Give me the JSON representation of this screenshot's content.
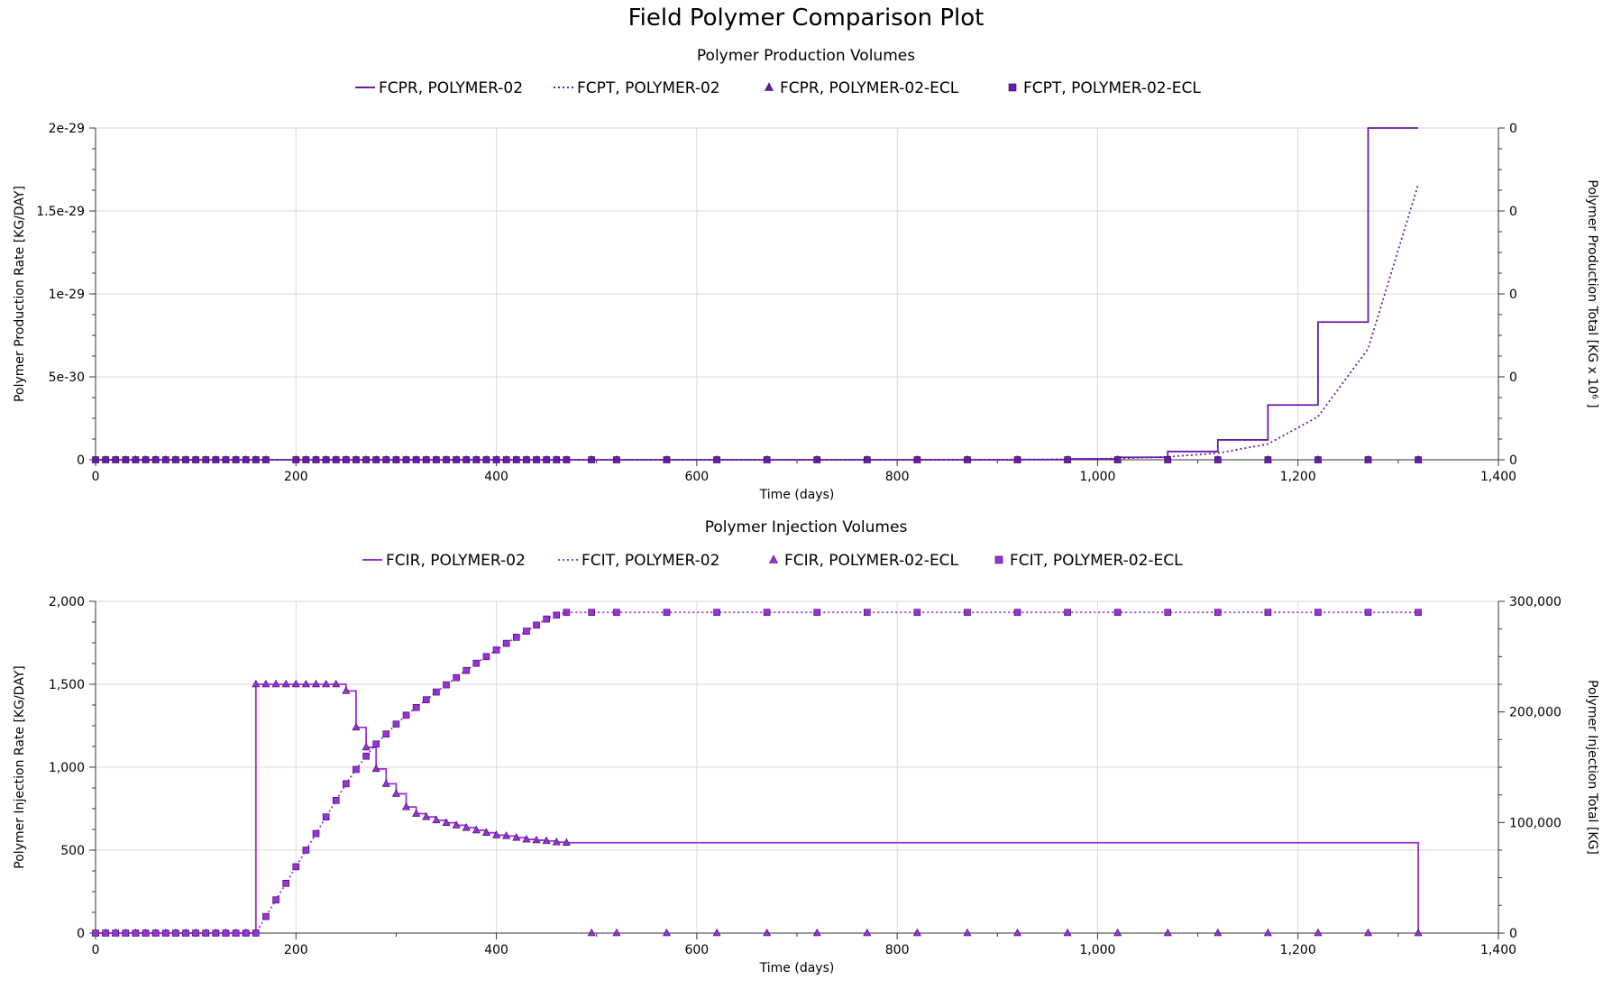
{
  "page": {
    "title": "Field Polymer Comparison Plot"
  },
  "colors": {
    "production": "#6a1aa8",
    "injection": "#9b30d9",
    "grid": "#d9d9d9",
    "axis": "#333333"
  },
  "chart_data": [
    {
      "type": "line",
      "title": "Polymer Production Volumes",
      "xlabel": "Time (days)",
      "ylabel": "Polymer Production Rate [KG/DAY]",
      "y2label": "Polymer Production Total [KG x 10⁶ ]",
      "xlim": [
        0,
        1400
      ],
      "ylim": [
        0,
        2e-29
      ],
      "y2lim": [
        0,
        1
      ],
      "x_ticks": [
        "0",
        "200",
        "400",
        "600",
        "800",
        "1,000",
        "1,200",
        "1,400"
      ],
      "y_ticks": [
        "0",
        "5e-30",
        "1e-29",
        "1.5e-29",
        "2e-29"
      ],
      "y2_ticks": [
        "0",
        "0",
        "0",
        "0",
        "0"
      ],
      "legend_position": "top",
      "grid": true,
      "series": [
        {
          "name": "FCPR, POLYMER-02",
          "style": "step-solid",
          "axis": "left",
          "x": [
            0,
            920,
            970,
            1020,
            1070,
            1120,
            1170,
            1220,
            1270,
            1320
          ],
          "y": [
            0,
            1e-32,
            5e-32,
            1.5e-31,
            5e-31,
            1.2e-30,
            3.3e-30,
            8.3e-30,
            2e-29,
            2e-29
          ]
        },
        {
          "name": "FCPT, POLYMER-02",
          "style": "dotted",
          "axis": "left",
          "x": [
            0,
            920,
            970,
            1020,
            1070,
            1120,
            1170,
            1220,
            1270,
            1320
          ],
          "y": [
            0,
            1e-32,
            3e-32,
            8e-32,
            1.8e-31,
            4e-31,
            9.5e-31,
            2.6e-30,
            6.7e-30,
            1.66e-29
          ]
        },
        {
          "name": "FCPR, POLYMER-02-ECL",
          "style": "triangle",
          "axis": "left",
          "x": [
            0,
            10,
            20,
            30,
            40,
            50,
            60,
            70,
            80,
            90,
            100,
            110,
            120,
            130,
            140,
            150,
            160,
            170,
            200,
            210,
            220,
            230,
            240,
            250,
            260,
            270,
            280,
            290,
            300,
            310,
            320,
            330,
            340,
            350,
            360,
            370,
            380,
            390,
            400,
            410,
            420,
            430,
            440,
            450,
            460,
            470,
            495,
            520,
            570,
            620,
            670,
            720,
            770,
            820,
            870,
            920,
            970,
            1020,
            1070,
            1120,
            1170,
            1220,
            1270,
            1320
          ],
          "y": [
            0,
            0,
            0,
            0,
            0,
            0,
            0,
            0,
            0,
            0,
            0,
            0,
            0,
            0,
            0,
            0,
            0,
            0,
            0,
            0,
            0,
            0,
            0,
            0,
            0,
            0,
            0,
            0,
            0,
            0,
            0,
            0,
            0,
            0,
            0,
            0,
            0,
            0,
            0,
            0,
            0,
            0,
            0,
            0,
            0,
            0,
            0,
            0,
            0,
            0,
            0,
            0,
            0,
            0,
            0,
            0,
            0,
            0,
            0,
            0,
            0,
            0,
            0,
            0
          ]
        },
        {
          "name": "FCPT, POLYMER-02-ECL",
          "style": "square",
          "axis": "left",
          "x": [
            0,
            10,
            20,
            30,
            40,
            50,
            60,
            70,
            80,
            90,
            100,
            110,
            120,
            130,
            140,
            150,
            160,
            170,
            200,
            210,
            220,
            230,
            240,
            250,
            260,
            270,
            280,
            290,
            300,
            310,
            320,
            330,
            340,
            350,
            360,
            370,
            380,
            390,
            400,
            410,
            420,
            430,
            440,
            450,
            460,
            470,
            495,
            520,
            570,
            620,
            670,
            720,
            770,
            820,
            870,
            920,
            970,
            1020,
            1070,
            1120,
            1170,
            1220,
            1270,
            1320
          ],
          "y": [
            0,
            0,
            0,
            0,
            0,
            0,
            0,
            0,
            0,
            0,
            0,
            0,
            0,
            0,
            0,
            0,
            0,
            0,
            0,
            0,
            0,
            0,
            0,
            0,
            0,
            0,
            0,
            0,
            0,
            0,
            0,
            0,
            0,
            0,
            0,
            0,
            0,
            0,
            0,
            0,
            0,
            0,
            0,
            0,
            0,
            0,
            0,
            0,
            0,
            0,
            0,
            0,
            0,
            0,
            0,
            0,
            0,
            0,
            0,
            0,
            0,
            0,
            0,
            0
          ]
        }
      ]
    },
    {
      "type": "line",
      "title": "Polymer Injection Volumes",
      "xlabel": "Time (days)",
      "ylabel": "Polymer Injection Rate [KG/DAY]",
      "y2label": "Polymer Injection Total [KG]",
      "xlim": [
        0,
        1400
      ],
      "ylim": [
        0,
        2000
      ],
      "y2lim": [
        0,
        300000
      ],
      "x_ticks": [
        "0",
        "200",
        "400",
        "600",
        "800",
        "1,000",
        "1,200",
        "1,400"
      ],
      "y_ticks": [
        "0",
        "500",
        "1,000",
        "1,500",
        "2,000"
      ],
      "y2_ticks": [
        "0",
        "100,000",
        "200,000",
        "300,000"
      ],
      "legend_position": "top",
      "grid": true,
      "series": [
        {
          "name": "FCIR, POLYMER-02",
          "style": "step-solid",
          "axis": "left",
          "x": [
            0,
            160,
            170,
            180,
            190,
            200,
            210,
            220,
            230,
            240,
            250,
            260,
            270,
            280,
            290,
            300,
            310,
            320,
            330,
            340,
            350,
            360,
            370,
            380,
            390,
            400,
            410,
            420,
            430,
            440,
            450,
            460,
            470,
            1320
          ],
          "y": [
            0,
            1500,
            1500,
            1500,
            1500,
            1500,
            1500,
            1500,
            1500,
            1500,
            1460,
            1240,
            1120,
            990,
            900,
            840,
            760,
            720,
            700,
            680,
            665,
            650,
            635,
            620,
            605,
            590,
            585,
            575,
            565,
            560,
            555,
            548,
            545,
            0
          ]
        },
        {
          "name": "FCIT, POLYMER-02",
          "style": "dotted",
          "axis": "right",
          "x": [
            0,
            160,
            170,
            180,
            190,
            200,
            210,
            220,
            230,
            240,
            250,
            260,
            270,
            280,
            290,
            300,
            310,
            320,
            330,
            340,
            350,
            360,
            370,
            380,
            390,
            400,
            410,
            420,
            430,
            440,
            450,
            460,
            470,
            1320
          ],
          "y": [
            0,
            0,
            15000,
            30000,
            45000,
            60000,
            75000,
            90000,
            105000,
            120000,
            135000,
            148000,
            160000,
            171000,
            180000,
            189000,
            197000,
            204000,
            211000,
            218000,
            224500,
            231000,
            237500,
            244000,
            250000,
            256000,
            262000,
            267500,
            273000,
            278500,
            284000,
            287500,
            290000,
            290000
          ]
        },
        {
          "name": "FCIR, POLYMER-02-ECL",
          "style": "triangle",
          "axis": "left",
          "x": [
            0,
            10,
            20,
            30,
            40,
            50,
            60,
            70,
            80,
            90,
            100,
            110,
            120,
            130,
            140,
            150,
            160,
            170,
            180,
            190,
            200,
            210,
            220,
            230,
            240,
            250,
            260,
            270,
            280,
            290,
            300,
            310,
            320,
            330,
            340,
            350,
            360,
            370,
            380,
            390,
            400,
            410,
            420,
            430,
            440,
            450,
            460,
            470,
            495,
            520,
            570,
            620,
            670,
            720,
            770,
            820,
            870,
            920,
            970,
            1020,
            1070,
            1120,
            1170,
            1220,
            1270,
            1320
          ],
          "y": [
            0,
            0,
            0,
            0,
            0,
            0,
            0,
            0,
            0,
            0,
            0,
            0,
            0,
            0,
            0,
            0,
            1500,
            1500,
            1500,
            1500,
            1500,
            1500,
            1500,
            1500,
            1500,
            1460,
            1240,
            1120,
            990,
            900,
            840,
            760,
            720,
            700,
            680,
            665,
            650,
            635,
            620,
            605,
            590,
            585,
            575,
            565,
            560,
            555,
            548,
            545,
            0,
            0,
            0,
            0,
            0,
            0,
            0,
            0,
            0,
            0,
            0,
            0,
            0,
            0,
            0,
            0,
            0,
            0
          ]
        },
        {
          "name": "FCIT, POLYMER-02-ECL",
          "style": "square",
          "axis": "right",
          "x": [
            0,
            10,
            20,
            30,
            40,
            50,
            60,
            70,
            80,
            90,
            100,
            110,
            120,
            130,
            140,
            150,
            160,
            170,
            180,
            190,
            200,
            210,
            220,
            230,
            240,
            250,
            260,
            270,
            280,
            290,
            300,
            310,
            320,
            330,
            340,
            350,
            360,
            370,
            380,
            390,
            400,
            410,
            420,
            430,
            440,
            450,
            460,
            470,
            495,
            520,
            570,
            620,
            670,
            720,
            770,
            820,
            870,
            920,
            970,
            1020,
            1070,
            1120,
            1170,
            1220,
            1270,
            1320
          ],
          "y": [
            0,
            0,
            0,
            0,
            0,
            0,
            0,
            0,
            0,
            0,
            0,
            0,
            0,
            0,
            0,
            0,
            0,
            15000,
            30000,
            45000,
            60000,
            75000,
            90000,
            105000,
            120000,
            135000,
            148000,
            160000,
            171000,
            180000,
            189000,
            197000,
            204000,
            211000,
            218000,
            224500,
            231000,
            237500,
            244000,
            250000,
            256000,
            262000,
            267500,
            273000,
            278500,
            284000,
            287500,
            290000,
            290000,
            290000,
            290000,
            290000,
            290000,
            290000,
            290000,
            290000,
            290000,
            290000,
            290000,
            290000,
            290000,
            290000,
            290000,
            290000,
            290000,
            290000
          ]
        }
      ]
    }
  ]
}
